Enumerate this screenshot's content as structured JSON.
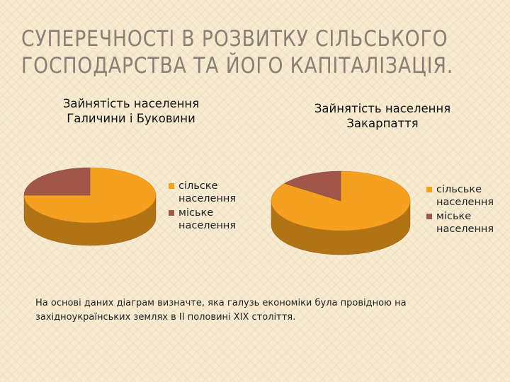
{
  "slide": {
    "title_lines": [
      "СУПЕРЕЧНОСТІ В РОЗВИТКУ СІЛЬСЬКОГО",
      "ГОСПОДАРСТВА ТА ЙОГО КАПІТАЛІЗАЦІЯ."
    ],
    "question": "На основі даних діаграм визначте, яка галузь економіки була провідною на західноукраїнських землях в ІІ половині ХІХ століття."
  },
  "chart_data": [
    {
      "type": "pie",
      "title_lines": [
        "Зайнятість населення",
        "Галичини і Буковини"
      ],
      "categories": [
        "сільске населення",
        "міське населення"
      ],
      "values": [
        75,
        25
      ],
      "colors": [
        "#f5a01e",
        "#a0574a"
      ],
      "legend_placement": "right"
    },
    {
      "type": "pie",
      "title_lines": [
        "Зайнятість населення",
        "Закарпаття"
      ],
      "categories": [
        "сільське населення",
        "міське населення"
      ],
      "values": [
        85,
        15
      ],
      "colors": [
        "#f5a01e",
        "#a0574a"
      ],
      "legend_placement": "right"
    }
  ]
}
